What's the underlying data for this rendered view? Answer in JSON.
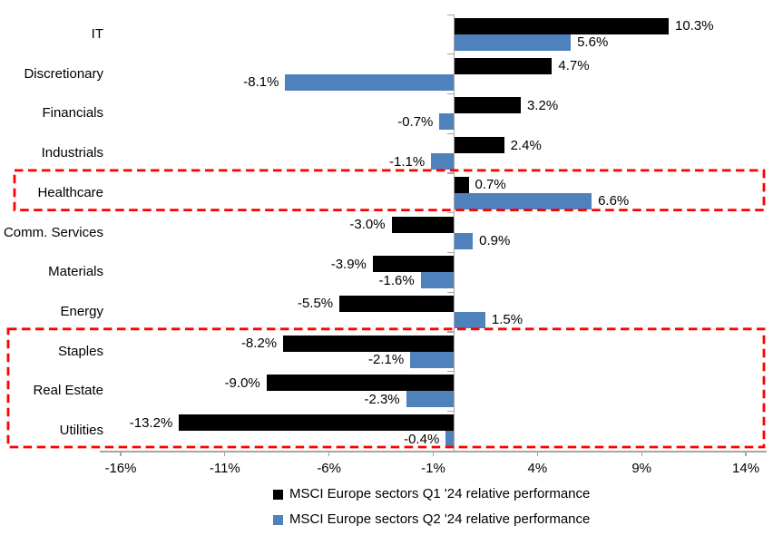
{
  "chart_data": {
    "type": "bar",
    "orientation": "horizontal",
    "title": "",
    "categories": [
      "IT",
      "Discretionary",
      "Financials",
      "Industrials",
      "Healthcare",
      "Comm. Services",
      "Materials",
      "Energy",
      "Staples",
      "Real Estate",
      "Utilities"
    ],
    "series": [
      {
        "name": "MSCI Europe sectors Q1 '24 relative performance",
        "color": "#000000",
        "values": [
          10.3,
          4.7,
          3.2,
          2.4,
          0.7,
          -3.0,
          -3.9,
          -5.5,
          -8.2,
          -9.0,
          -13.2
        ],
        "labels": [
          "10.3%",
          "4.7%",
          "3.2%",
          "2.4%",
          "0.7%",
          "-3.0%",
          "-3.9%",
          "-5.5%",
          "-8.2%",
          "-9.0%",
          "-13.2%"
        ]
      },
      {
        "name": "MSCI Europe sectors Q2 '24 relative performance",
        "color": "#4F81BD",
        "values": [
          5.6,
          -8.1,
          -0.7,
          -1.1,
          6.6,
          0.9,
          -1.6,
          1.5,
          -2.1,
          -2.3,
          -0.4
        ],
        "labels": [
          "5.6%",
          "-8.1%",
          "-0.7%",
          "-1.1%",
          "6.6%",
          "0.9%",
          "-1.6%",
          "1.5%",
          "-2.1%",
          "-2.3%",
          "-0.4%"
        ]
      }
    ],
    "xlabel": "",
    "ylabel": "",
    "xlim": [
      -17,
      15
    ],
    "x_ticks": [
      {
        "value": -16,
        "label": "-16%"
      },
      {
        "value": -11,
        "label": "-11%"
      },
      {
        "value": -6,
        "label": "-6%"
      },
      {
        "value": -1,
        "label": "-1%"
      },
      {
        "value": 4,
        "label": "4%"
      },
      {
        "value": 9,
        "label": "9%"
      },
      {
        "value": 14,
        "label": "14%"
      }
    ],
    "grid": false,
    "legend_position": "bottom",
    "axis_color": "#a6a6a6",
    "highlight_color": "#ff0000",
    "highlights": [
      {
        "label": "Healthcare",
        "band_start": 4,
        "band_end": 4
      },
      {
        "label": "Staples / Real Estate / Utilities",
        "band_start": 8,
        "band_end": 10
      }
    ]
  }
}
